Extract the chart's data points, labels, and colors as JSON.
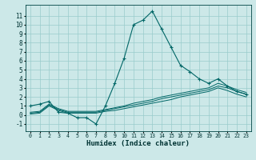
{
  "title": "",
  "xlabel": "Humidex (Indice chaleur)",
  "xlim": [
    -0.5,
    23.5
  ],
  "ylim": [
    -1.8,
    12.2
  ],
  "yticks": [
    -1,
    0,
    1,
    2,
    3,
    4,
    5,
    6,
    7,
    8,
    9,
    10,
    11
  ],
  "xticks": [
    0,
    1,
    2,
    3,
    4,
    5,
    6,
    7,
    8,
    9,
    10,
    11,
    12,
    13,
    14,
    15,
    16,
    17,
    18,
    19,
    20,
    21,
    22,
    23
  ],
  "bg_color": "#cce8e8",
  "grid_color": "#99cccc",
  "line_color": "#006666",
  "line1_x": [
    0,
    1,
    2,
    3,
    4,
    5,
    6,
    7,
    8,
    9,
    10,
    11,
    12,
    13,
    14,
    15,
    16,
    17,
    18,
    19,
    20,
    21,
    22,
    23
  ],
  "line1_y": [
    1.0,
    1.2,
    1.5,
    0.3,
    0.2,
    -0.3,
    -0.3,
    -1.0,
    1.0,
    3.5,
    6.3,
    10.0,
    10.5,
    11.5,
    9.5,
    7.5,
    5.5,
    4.8,
    4.0,
    3.5,
    4.0,
    3.2,
    2.6,
    2.3
  ],
  "line2_x": [
    0,
    1,
    2,
    3,
    4,
    5,
    6,
    7,
    8,
    9,
    10,
    11,
    12,
    13,
    14,
    15,
    16,
    17,
    18,
    19,
    20,
    21,
    22,
    23
  ],
  "line2_y": [
    0.3,
    0.4,
    1.2,
    0.7,
    0.4,
    0.4,
    0.4,
    0.4,
    0.6,
    0.8,
    1.0,
    1.3,
    1.5,
    1.7,
    2.0,
    2.2,
    2.4,
    2.6,
    2.8,
    3.0,
    3.5,
    3.2,
    2.8,
    2.5
  ],
  "line3_x": [
    0,
    1,
    2,
    3,
    4,
    5,
    6,
    7,
    8,
    9,
    10,
    11,
    12,
    13,
    14,
    15,
    16,
    17,
    18,
    19,
    20,
    21,
    22,
    23
  ],
  "line3_y": [
    0.2,
    0.3,
    1.1,
    0.6,
    0.3,
    0.3,
    0.3,
    0.3,
    0.5,
    0.7,
    0.9,
    1.1,
    1.3,
    1.5,
    1.8,
    2.0,
    2.2,
    2.4,
    2.6,
    2.8,
    3.2,
    3.0,
    2.6,
    2.3
  ],
  "line4_x": [
    0,
    1,
    2,
    3,
    4,
    5,
    6,
    7,
    8,
    9,
    10,
    11,
    12,
    13,
    14,
    15,
    16,
    17,
    18,
    19,
    20,
    21,
    22,
    23
  ],
  "line4_y": [
    0.1,
    0.2,
    1.0,
    0.5,
    0.2,
    0.2,
    0.2,
    0.2,
    0.4,
    0.5,
    0.7,
    0.9,
    1.1,
    1.3,
    1.5,
    1.7,
    2.0,
    2.2,
    2.4,
    2.6,
    3.0,
    2.7,
    2.3,
    2.0
  ]
}
